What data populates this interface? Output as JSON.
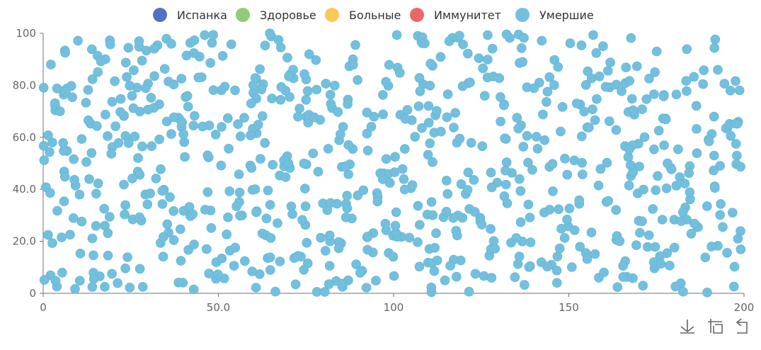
{
  "chart_data": {
    "type": "scatter",
    "title": "",
    "xlabel": "",
    "ylabel": "",
    "xlim": [
      0,
      200
    ],
    "ylim": [
      0,
      100
    ],
    "x_ticks": [
      "0",
      "50.0",
      "100",
      "150",
      "200"
    ],
    "y_ticks": [
      "0",
      "20.0",
      "40.0",
      "60.0",
      "80.0",
      "100"
    ],
    "legend_position": "top-center",
    "grid": false,
    "series": [
      {
        "name": "Испанка",
        "color": "#5470c6",
        "points": []
      },
      {
        "name": "Здоровье",
        "color": "#91cc75",
        "points": []
      },
      {
        "name": "Больные",
        "color": "#fac858",
        "points": []
      },
      {
        "name": "Иммунитет",
        "color": "#ee6666",
        "points": []
      },
      {
        "name": "Умершие",
        "color": "#73c0de",
        "point_count": 800,
        "points_note_x_range": [
          0,
          200
        ],
        "points_note_y_range": [
          0,
          100
        ]
      }
    ]
  },
  "toolbox": {
    "download_icon": "download-icon",
    "zoom_icon": "zoom-icon",
    "restore_icon": "restore-icon"
  }
}
